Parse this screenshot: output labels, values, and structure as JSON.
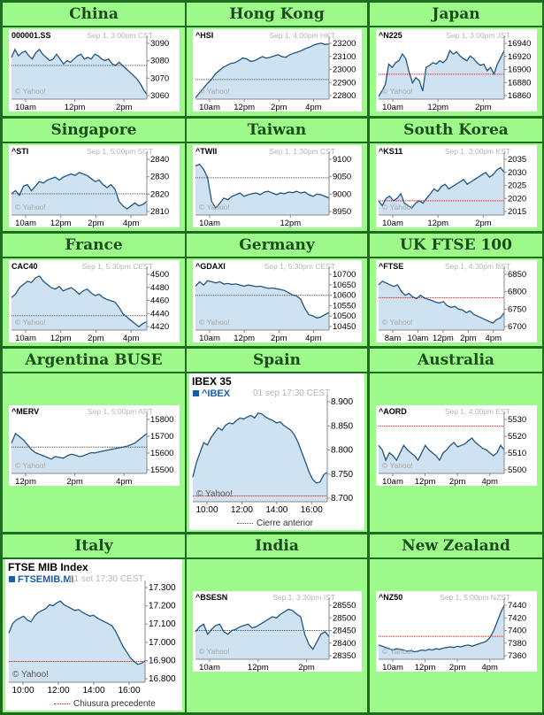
{
  "colors": {
    "area": "#cfe2f1",
    "line": "#22567f",
    "prev": "#b32222",
    "axis": "#000000"
  },
  "markets": [
    {
      "name": "China",
      "symbol": "000001.SS",
      "stamp": "Sep 1, 3:00pm CST",
      "watermark": "© Yahoo!",
      "chart_data": {
        "type": "area",
        "xticks": [
          "10am",
          "12pm",
          "2pm"
        ],
        "yticks": [
          3090,
          3080,
          3070,
          3060
        ],
        "ylim": [
          3057,
          3094
        ],
        "prev_close": 3078,
        "values": [
          3083,
          3088,
          3084,
          3086,
          3087,
          3084,
          3082,
          3086,
          3088,
          3085,
          3083,
          3081,
          3082,
          3085,
          3082,
          3079,
          3081,
          3080,
          3082,
          3084,
          3085,
          3082,
          3083,
          3082,
          3085,
          3084,
          3082,
          3081,
          3082,
          3079,
          3078,
          3080,
          3078,
          3076,
          3074,
          3072,
          3070,
          3067,
          3063,
          3060
        ]
      }
    },
    {
      "name": "Hong Kong",
      "symbol": "^HSI",
      "stamp": "Sep 1, 4:00pm HKT",
      "watermark": "© Yahoo!",
      "chart_data": {
        "type": "area",
        "xticks": [
          "10am",
          "12pm",
          "2pm",
          "4pm"
        ],
        "yticks": [
          23200,
          23100,
          23000,
          22900,
          22800
        ],
        "ylim": [
          22790,
          23230
        ],
        "prev_close": 22935,
        "values": [
          22800,
          22835,
          22870,
          22905,
          22935,
          22975,
          23000,
          23025,
          23040,
          23055,
          23060,
          23075,
          23095,
          23090,
          23070,
          23075,
          23090,
          23105,
          23095,
          23100,
          23110,
          23120,
          23105,
          23100,
          23120,
          23130,
          23140,
          23150,
          23165,
          23175,
          23190,
          23200,
          23205,
          23195,
          23200
        ]
      }
    },
    {
      "name": "Japan",
      "symbol": "^N225",
      "stamp": "Sep 1, 3:00pm JST",
      "watermark": "© Yahoo!",
      "chart_data": {
        "type": "area",
        "xticks": [
          "10am",
          "12pm",
          "2pm"
        ],
        "yticks": [
          16940,
          16920,
          16900,
          16880,
          16860
        ],
        "ylim": [
          16858,
          16946
        ],
        "prev_close": 16895,
        "values": [
          16862,
          16870,
          16880,
          16910,
          16905,
          16912,
          16915,
          16925,
          16918,
          16898,
          16882,
          16890,
          16885,
          16870,
          16905,
          16908,
          16912,
          16910,
          16915,
          16912,
          16917,
          16930,
          16925,
          16928,
          16922,
          16918,
          16915,
          16922,
          16918,
          16912,
          16908,
          16910,
          16900,
          16905,
          16895,
          16910,
          16920,
          16930
        ]
      }
    },
    {
      "name": "Singapore",
      "symbol": "^STI",
      "stamp": "Sep 1, 5:00pm SGT",
      "watermark": "© Yahoo!",
      "chart_data": {
        "type": "area",
        "xticks": [
          "10am",
          "12pm",
          "2pm",
          "4pm"
        ],
        "yticks": [
          2840,
          2830,
          2820,
          2810
        ],
        "ylim": [
          2806,
          2845
        ],
        "prev_close": 2820,
        "values": [
          2820,
          2822,
          2819,
          2825,
          2826,
          2822,
          2825,
          2828,
          2827,
          2829,
          2830,
          2831,
          2829,
          2831,
          2832,
          2833,
          2832,
          2834,
          2833,
          2832,
          2830,
          2828,
          2829,
          2826,
          2824,
          2826,
          2823,
          2815,
          2812,
          2810,
          2812,
          2814,
          2812,
          2813,
          2815
        ]
      }
    },
    {
      "name": "Taiwan",
      "symbol": "^TWII",
      "stamp": "Sep 1, 1:30pm CST",
      "watermark": "© Yahoo!",
      "chart_data": {
        "type": "area",
        "xticks": [
          "10am",
          "12pm"
        ],
        "yticks": [
          9100,
          9050,
          9000,
          8950
        ],
        "ylim": [
          8940,
          9115
        ],
        "prev_close": 9050,
        "values": [
          9085,
          9090,
          9075,
          9050,
          8980,
          8960,
          8975,
          8990,
          8985,
          8995,
          9000,
          9005,
          8995,
          9000,
          9003,
          9005,
          9000,
          9008,
          9010,
          9005,
          9000,
          9005,
          9003,
          9008,
          9006,
          9010,
          9005,
          9008,
          9000,
          8995,
          9002,
          9000,
          8995,
          8990
        ]
      }
    },
    {
      "name": "South Korea",
      "symbol": "^KS11",
      "stamp": "Sep 1, 3:00pm KST",
      "watermark": "© Yahoo!",
      "chart_data": {
        "type": "area",
        "xticks": [
          "10am",
          "12pm",
          "2pm"
        ],
        "yticks": [
          2035,
          2030,
          2025,
          2020,
          2015
        ],
        "ylim": [
          2013,
          2038
        ],
        "prev_close": 2019,
        "values": [
          2019,
          2017,
          2020,
          2021,
          2019,
          2020,
          2022,
          2018,
          2017,
          2016,
          2018,
          2019,
          2018,
          2020,
          2022,
          2024,
          2023,
          2025,
          2026,
          2024,
          2025,
          2026,
          2027,
          2028,
          2026,
          2027,
          2028,
          2029,
          2030,
          2031,
          2029,
          2030,
          2032,
          2033,
          2031
        ]
      }
    },
    {
      "name": "France",
      "symbol": "CAC40",
      "stamp": "Sep 1, 5:30pm CEST",
      "watermark": "© Yahoo!",
      "chart_data": {
        "type": "area",
        "xticks": [
          "10am",
          "12pm",
          "2pm",
          "4pm"
        ],
        "yticks": [
          4500,
          4480,
          4460,
          4440,
          4420
        ],
        "ylim": [
          4415,
          4506
        ],
        "prev_close": 4437,
        "values": [
          4465,
          4470,
          4480,
          4485,
          4490,
          4488,
          4495,
          4498,
          4490,
          4485,
          4480,
          4478,
          4482,
          4475,
          4478,
          4480,
          4476,
          4470,
          4475,
          4478,
          4472,
          4468,
          4470,
          4465,
          4462,
          4460,
          4458,
          4450,
          4440,
          4435,
          4430,
          4425,
          4420,
          4425,
          4428
        ]
      }
    },
    {
      "name": "Germany",
      "symbol": "^GDAXI",
      "stamp": "Sep 1, 5:30pm CEST",
      "watermark": "© Yahoo!",
      "chart_data": {
        "type": "area",
        "xticks": [
          "10am",
          "12pm",
          "2pm",
          "4pm"
        ],
        "yticks": [
          10700,
          10650,
          10600,
          10550,
          10500,
          10450
        ],
        "ylim": [
          10440,
          10710
        ],
        "prev_close": 10598,
        "values": [
          10640,
          10660,
          10645,
          10665,
          10660,
          10655,
          10660,
          10650,
          10652,
          10648,
          10650,
          10645,
          10640,
          10645,
          10642,
          10638,
          10640,
          10635,
          10630,
          10632,
          10628,
          10625,
          10620,
          10610,
          10600,
          10595,
          10580,
          10540,
          10510,
          10505,
          10495,
          10500,
          10510,
          10520
        ]
      }
    },
    {
      "name": "UK FTSE 100",
      "symbol": "^FTSE",
      "stamp": "Sep 1, 4:30pm BST",
      "watermark": "© Yahoo!",
      "chart_data": {
        "type": "area",
        "xticks": [
          "8am",
          "10am",
          "12pm",
          "2pm",
          "4pm"
        ],
        "yticks": [
          6850,
          6800,
          6750,
          6700
        ],
        "ylim": [
          6690,
          6860
        ],
        "prev_close": 6783,
        "values": [
          6820,
          6830,
          6825,
          6820,
          6815,
          6820,
          6800,
          6790,
          6795,
          6785,
          6780,
          6790,
          6782,
          6778,
          6775,
          6770,
          6768,
          6772,
          6760,
          6755,
          6758,
          6750,
          6748,
          6740,
          6745,
          6735,
          6730,
          6725,
          6720,
          6715,
          6710,
          6720,
          6725,
          6740
        ]
      }
    },
    {
      "name": "Argentina BUSE",
      "symbol": "^MERV",
      "stamp": "Sep 1, 5:00pm ART",
      "watermark": "© Yahoo!",
      "chart_data": {
        "type": "area",
        "xticks": [
          "12pm",
          "2pm",
          "4pm"
        ],
        "yticks": [
          15800,
          15700,
          15600,
          15500
        ],
        "ylim": [
          15470,
          15830
        ],
        "prev_close": 15635,
        "values": [
          15660,
          15720,
          15700,
          15680,
          15650,
          15620,
          15600,
          15590,
          15580,
          15570,
          15560,
          15575,
          15570,
          15565,
          15580,
          15590,
          15585,
          15575,
          15580,
          15590,
          15600,
          15598,
          15605,
          15610,
          15615,
          15620,
          15625,
          15630,
          15635,
          15640,
          15650,
          15660,
          15680,
          15700,
          15720
        ]
      }
    },
    {
      "name": "Spain",
      "title": "IBEX 35",
      "symbol": "^IBEX",
      "stamp": "01 sep 17:30 CEST",
      "watermark": "© Yahoo!",
      "legend": "Cierre anterior",
      "chart_data": {
        "type": "area",
        "xticks": [
          "10:00",
          "12:00",
          "14:00",
          "16:00"
        ],
        "yticks": [
          "8.900",
          "8.850",
          "8.800",
          "8.750",
          "8.700"
        ],
        "ylim": [
          8700,
          8910
        ],
        "prev_close": 8712,
        "values": [
          8750,
          8780,
          8800,
          8820,
          8815,
          8830,
          8840,
          8850,
          8845,
          8855,
          8860,
          8858,
          8865,
          8870,
          8868,
          8872,
          8875,
          8870,
          8880,
          8878,
          8872,
          8868,
          8865,
          8860,
          8862,
          8855,
          8850,
          8845,
          8835,
          8820,
          8800,
          8780,
          8760,
          8745,
          8738,
          8740,
          8755,
          8760
        ]
      }
    },
    {
      "name": "Australia",
      "symbol": "^AORD",
      "stamp": "Sep 1, 4:00pm EST",
      "watermark": "© Yahoo!",
      "chart_data": {
        "type": "area",
        "xticks": [
          "10am",
          "12pm",
          "2pm",
          "4pm"
        ],
        "yticks": [
          5530,
          5520,
          5510,
          5500
        ],
        "ylim": [
          5496,
          5535
        ],
        "prev_close": 5528,
        "values": [
          5515,
          5512,
          5505,
          5510,
          5508,
          5505,
          5510,
          5515,
          5512,
          5510,
          5508,
          5505,
          5510,
          5515,
          5512,
          5510,
          5508,
          5505,
          5510,
          5512,
          5515,
          5517,
          5514,
          5515,
          5516,
          5518,
          5520,
          5517,
          5515,
          5513,
          5512,
          5510,
          5508,
          5510,
          5515,
          5512
        ]
      }
    },
    {
      "name": "Italy",
      "title": "FTSE MIB Index",
      "symbol": "FTSEMIB.MI",
      "stamp": "01 set 17:30 CEST",
      "watermark": "© Yahoo!",
      "legend": "Chiusura precedente",
      "chart_data": {
        "type": "area",
        "xticks": [
          "10:00",
          "12:00",
          "14:00",
          "16:00"
        ],
        "yticks": [
          "17.300",
          "17.200",
          "17.100",
          "17.000",
          "16.900",
          "16.800"
        ],
        "ylim": [
          16790,
          17310
        ],
        "prev_close": 16900,
        "values": [
          17050,
          17100,
          17120,
          17130,
          17140,
          17120,
          17110,
          17140,
          17160,
          17170,
          17180,
          17200,
          17195,
          17210,
          17220,
          17200,
          17190,
          17180,
          17170,
          17175,
          17160,
          17150,
          17140,
          17145,
          17130,
          17120,
          17110,
          17100,
          17090,
          17060,
          17020,
          16980,
          16950,
          16920,
          16900,
          16885,
          16890,
          16905
        ]
      }
    },
    {
      "name": "India",
      "symbol": "^BSESN",
      "stamp": "Sep 1, 3:30pm IST",
      "watermark": "© Yahoo!",
      "chart_data": {
        "type": "area",
        "xticks": [
          "10am",
          "12pm",
          "2pm"
        ],
        "yticks": [
          28550,
          28500,
          28450,
          28400,
          28350
        ],
        "ylim": [
          28340,
          28570
        ],
        "prev_close": 28455,
        "values": [
          28450,
          28470,
          28480,
          28440,
          28460,
          28475,
          28480,
          28450,
          28440,
          28455,
          28460,
          28470,
          28475,
          28480,
          28465,
          28470,
          28480,
          28490,
          28500,
          28510,
          28505,
          28520,
          28530,
          28540,
          28535,
          28520,
          28510,
          28440,
          28400,
          28380,
          28410,
          28440,
          28450,
          28430
        ]
      }
    },
    {
      "name": "New Zealand",
      "symbol": "^NZ50",
      "stamp": "Sep 1, 5:00pm NZST",
      "watermark": "© Yahoo!",
      "chart_data": {
        "type": "area",
        "xticks": [
          "10am",
          "12pm",
          "2pm",
          "4pm"
        ],
        "yticks": [
          7440,
          7420,
          7400,
          7380,
          7360
        ],
        "ylim": [
          7355,
          7448
        ],
        "prev_close": 7392,
        "values": [
          7378,
          7376,
          7374,
          7372,
          7370,
          7372,
          7371,
          7370,
          7368,
          7369,
          7367,
          7368,
          7370,
          7369,
          7371,
          7370,
          7372,
          7371,
          7373,
          7374,
          7375,
          7374,
          7376,
          7375,
          7377,
          7378,
          7376,
          7378,
          7380,
          7382,
          7384,
          7390,
          7400,
          7415,
          7430,
          7442
        ]
      }
    }
  ]
}
